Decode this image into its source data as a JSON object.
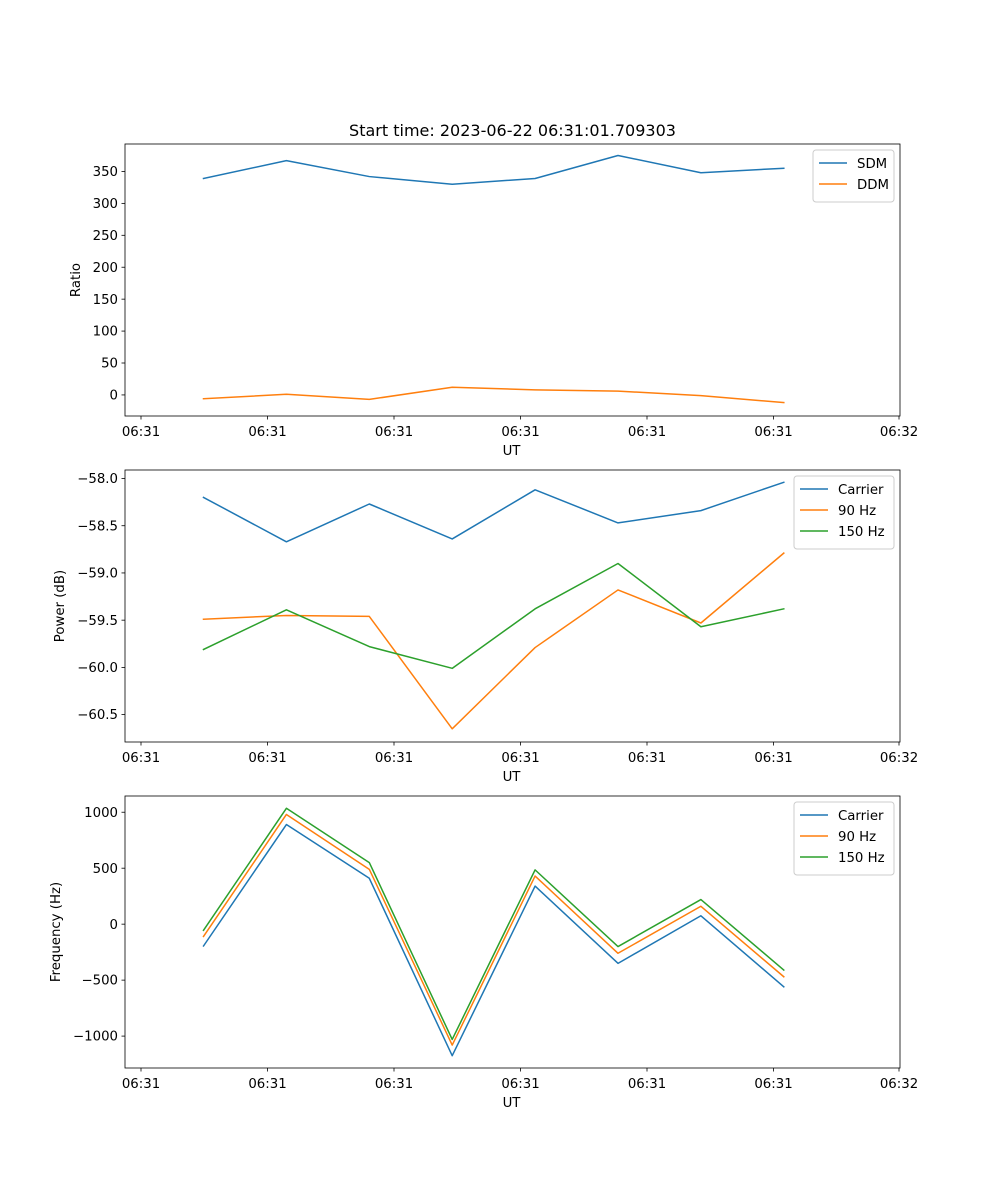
{
  "chart_data": [
    {
      "type": "line",
      "title": "Start time: 2023-06-22 06:31:01.709303",
      "xlabel": "UT",
      "ylabel": "Ratio",
      "x_tick_labels": [
        "06:31",
        "06:31",
        "06:31",
        "06:31",
        "06:31",
        "06:31",
        "06:32"
      ],
      "y_ticks": [
        0,
        50,
        100,
        150,
        200,
        250,
        300,
        350
      ],
      "y_tick_labels": [
        "0",
        "50",
        "100",
        "150",
        "200",
        "250",
        "300",
        "350"
      ],
      "ylim": [
        -33,
        393
      ],
      "x_index": [
        0,
        1,
        2,
        3,
        4,
        5,
        6,
        7
      ],
      "legend_position": "upper-right",
      "grid": false,
      "series": [
        {
          "name": "SDM",
          "color": "#1f77b4",
          "values": [
            339,
            367,
            342,
            330,
            339,
            375,
            348,
            355
          ]
        },
        {
          "name": "DDM",
          "color": "#ff7f0e",
          "values": [
            -6,
            1,
            -7,
            12,
            8,
            6,
            -1,
            -12
          ]
        }
      ]
    },
    {
      "type": "line",
      "title": "",
      "xlabel": "UT",
      "ylabel": "Power (dB)",
      "x_tick_labels": [
        "06:31",
        "06:31",
        "06:31",
        "06:31",
        "06:31",
        "06:31",
        "06:32"
      ],
      "y_ticks": [
        -58.0,
        -58.5,
        -59.0,
        -59.5,
        -60.0,
        -60.5
      ],
      "y_tick_labels": [
        "−58.0",
        "−58.5",
        "−59.0",
        "−59.5",
        "−60.0",
        "−60.5"
      ],
      "ylim": [
        -60.79,
        -57.91
      ],
      "x_index": [
        0,
        1,
        2,
        3,
        4,
        5,
        6,
        7
      ],
      "legend_position": "upper-right",
      "grid": false,
      "series": [
        {
          "name": "Carrier",
          "color": "#1f77b4",
          "values": [
            -58.2,
            -58.67,
            -58.27,
            -58.64,
            -58.12,
            -58.47,
            -58.34,
            -58.04
          ]
        },
        {
          "name": "90 Hz",
          "color": "#ff7f0e",
          "values": [
            -59.49,
            -59.45,
            -59.46,
            -60.65,
            -59.79,
            -59.18,
            -59.53,
            -58.79
          ]
        },
        {
          "name": "150 Hz",
          "color": "#2ca02c",
          "values": [
            -59.81,
            -59.39,
            -59.78,
            -60.01,
            -59.38,
            -58.9,
            -59.57,
            -59.38
          ]
        }
      ]
    },
    {
      "type": "line",
      "title": "",
      "xlabel": "UT",
      "ylabel": "Frequency (Hz)",
      "x_tick_labels": [
        "06:31",
        "06:31",
        "06:31",
        "06:31",
        "06:31",
        "06:31",
        "06:32"
      ],
      "y_ticks": [
        1000,
        500,
        0,
        -500,
        -1000
      ],
      "y_tick_labels": [
        "1000",
        "500",
        "0",
        "−500",
        "−1000"
      ],
      "ylim": [
        -1285,
        1145
      ],
      "x_index": [
        0,
        1,
        2,
        3,
        4,
        5,
        6,
        7
      ],
      "legend_position": "upper-right",
      "grid": false,
      "series": [
        {
          "name": "Carrier",
          "color": "#1f77b4",
          "values": [
            -195,
            890,
            410,
            -1175,
            340,
            -350,
            75,
            -560
          ]
        },
        {
          "name": "90 Hz",
          "color": "#ff7f0e",
          "values": [
            -110,
            980,
            490,
            -1080,
            430,
            -260,
            160,
            -470
          ]
        },
        {
          "name": "150 Hz",
          "color": "#2ca02c",
          "values": [
            -55,
            1035,
            550,
            -1030,
            485,
            -200,
            220,
            -410
          ]
        }
      ]
    }
  ]
}
